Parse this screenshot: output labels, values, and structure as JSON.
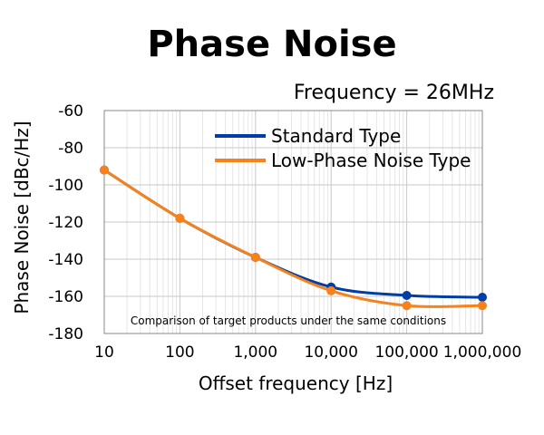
{
  "chart_data": {
    "type": "line",
    "title": "Phase Noise",
    "subtitle": "Frequency = 26MHz",
    "xlabel": "Offset frequency [Hz]",
    "ylabel": "Phase Noise [dBc/Hz]",
    "x_scale": "log",
    "xlim": [
      10,
      1000000
    ],
    "ylim": [
      -180,
      -60
    ],
    "x_tick_values": [
      10,
      100,
      1000,
      10000,
      100000,
      1000000
    ],
    "x_tick_labels": [
      "10",
      "100",
      "1,000",
      "10,000",
      "100,000",
      "1,000,000"
    ],
    "y_tick_values": [
      -60,
      -80,
      -100,
      -120,
      -140,
      -160,
      -180
    ],
    "y_tick_labels": [
      "-60",
      "-80",
      "-100",
      "-120",
      "-140",
      "-160",
      "-180"
    ],
    "grid": true,
    "legend_position": "top-right",
    "annotation": "Comparison of target products under the same conditions",
    "series": [
      {
        "name": "Standard Type",
        "color": "#003DA5",
        "x": [
          10,
          100,
          1000,
          10000,
          100000,
          1000000
        ],
        "values": [
          -92,
          -118,
          -139,
          -155,
          -159.5,
          -160.5
        ]
      },
      {
        "name": "Low-Phase Noise Type",
        "color": "#F7821B",
        "x": [
          10,
          100,
          1000,
          10000,
          100000,
          1000000
        ],
        "values": [
          -92,
          -118,
          -139,
          -157,
          -165,
          -165
        ]
      }
    ]
  }
}
